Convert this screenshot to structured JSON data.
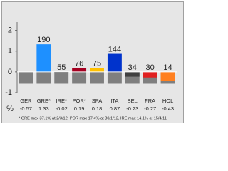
{
  "chart_data": {
    "type": "bar",
    "categories": [
      "GER",
      "GRE*",
      "IRE*",
      "POR*",
      "SPA",
      "ITA",
      "BEL",
      "FRA",
      "HOL"
    ],
    "values": [
      -0.57,
      1.33,
      -0.02,
      0.19,
      0.18,
      0.87,
      -0.23,
      -0.27,
      -0.43
    ],
    "colors": [
      "#7f7f7f",
      "#1e90ff",
      "#404040",
      "#a50021",
      "#ffc000",
      "#0033cc",
      "#404040",
      "#e02020",
      "#ff8020"
    ],
    "top_labels": [
      null,
      190,
      55,
      76,
      75,
      144,
      34,
      30,
      14
    ],
    "value_row_label": "%",
    "ylim": [
      -1,
      2.4
    ],
    "yticks": [
      -1,
      0,
      1,
      2
    ],
    "footnote": "* GRE max 37.1% at 2/3/12, POR max 17.4% at 30/1/12, IRE max 14.1% at 15/4/11"
  }
}
